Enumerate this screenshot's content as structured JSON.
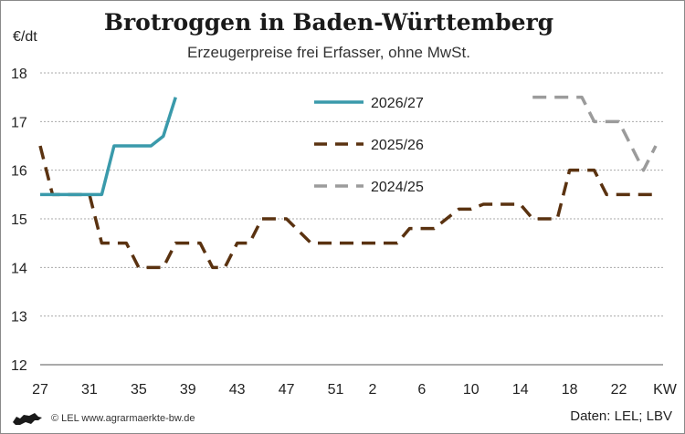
{
  "chart_data": {
    "type": "line",
    "title": "Brotroggen in Baden-Württemberg",
    "subtitle": "Erzeugerpreise frei Erfasser, ohne MwSt.",
    "ylabel": "€/dt",
    "xlabel": "KW",
    "ylim": [
      12,
      18
    ],
    "yticks": [
      12,
      13,
      14,
      15,
      16,
      17,
      18
    ],
    "x_categories": [
      "27",
      "28",
      "29",
      "30",
      "31",
      "32",
      "33",
      "34",
      "35",
      "36",
      "37",
      "38",
      "39",
      "40",
      "41",
      "42",
      "43",
      "44",
      "45",
      "46",
      "47",
      "48",
      "49",
      "50",
      "51",
      "52",
      "1",
      "2",
      "3",
      "4",
      "5",
      "6",
      "7",
      "8",
      "9",
      "10",
      "11",
      "12",
      "13",
      "14",
      "15",
      "16",
      "17",
      "18",
      "19",
      "20",
      "21",
      "22",
      "23",
      "24",
      "25"
    ],
    "x_tick_labels": [
      "27",
      "31",
      "35",
      "39",
      "43",
      "47",
      "51",
      "2",
      "6",
      "10",
      "14",
      "18",
      "22"
    ],
    "grid": "horizontal",
    "legend_position": "top-center",
    "series": [
      {
        "name": "2026/27",
        "color": "#3a9aab",
        "style": "solid",
        "points": [
          [
            "27",
            15.5
          ],
          [
            "32",
            15.5
          ],
          [
            "33",
            16.5
          ],
          [
            "36",
            16.5
          ],
          [
            "37",
            16.7
          ],
          [
            "38",
            17.5
          ]
        ]
      },
      {
        "name": "2025/26",
        "color": "#5a3210",
        "style": "dashed",
        "points": [
          [
            "27",
            16.5
          ],
          [
            "28",
            15.5
          ],
          [
            "31",
            15.5
          ],
          [
            "32",
            14.5
          ],
          [
            "34",
            14.5
          ],
          [
            "35",
            14.0
          ],
          [
            "37",
            14.0
          ],
          [
            "38",
            14.5
          ],
          [
            "40",
            14.5
          ],
          [
            "41",
            14.0
          ],
          [
            "42",
            14.0
          ],
          [
            "43",
            14.5
          ],
          [
            "44",
            14.5
          ],
          [
            "45",
            15.0
          ],
          [
            "47",
            15.0
          ],
          [
            "49",
            14.5
          ],
          [
            "4",
            14.5
          ],
          [
            "5",
            14.8
          ],
          [
            "6",
            14.8
          ],
          [
            "7",
            14.8
          ],
          [
            "9",
            15.2
          ],
          [
            "10",
            15.2
          ],
          [
            "11",
            15.3
          ],
          [
            "14",
            15.3
          ],
          [
            "15",
            15.0
          ],
          [
            "17",
            15.0
          ],
          [
            "18",
            16.0
          ],
          [
            "20",
            16.0
          ],
          [
            "21",
            15.5
          ],
          [
            "25",
            15.5
          ]
        ]
      },
      {
        "name": "2024/25",
        "color": "#9b9b9b",
        "style": "dashed",
        "points": [
          [
            "15",
            17.5
          ],
          [
            "19",
            17.5
          ],
          [
            "20",
            17.0
          ],
          [
            "22",
            17.0
          ],
          [
            "24",
            16.0
          ],
          [
            "25",
            16.5
          ]
        ]
      }
    ]
  },
  "footer": {
    "credit": "© LEL www.agrarmaerkte-bw.de",
    "source": "Daten: LEL; LBV"
  }
}
